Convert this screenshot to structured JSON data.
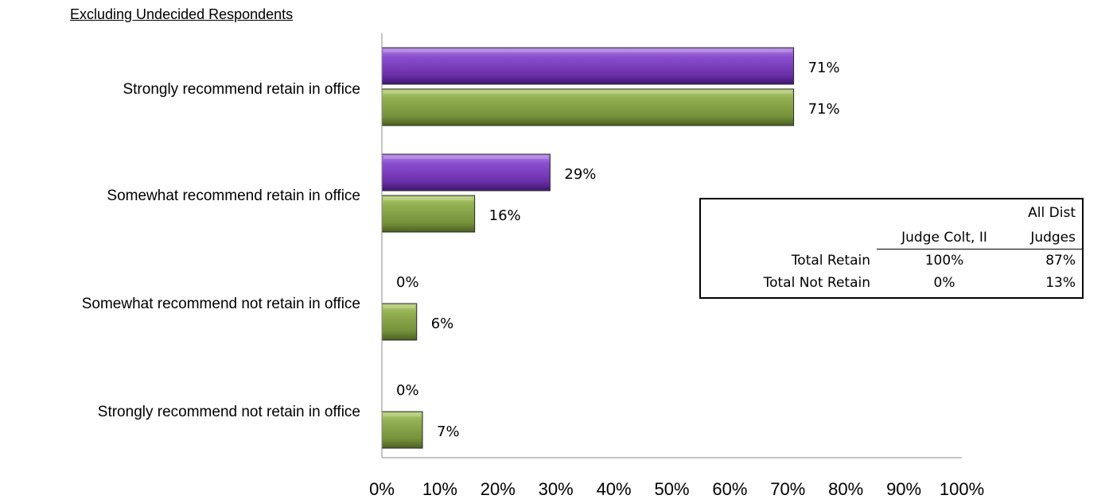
{
  "chart_data": {
    "type": "bar",
    "orientation": "horizontal",
    "subtitle": "Excluding Undecided Respondents",
    "categories": [
      "Strongly recommend retain in office",
      "Somewhat recommend retain in office",
      "Somewhat recommend not retain in office",
      "Strongly recommend not retain in office"
    ],
    "series": [
      {
        "color": "#7b3fb8",
        "values": [
          71,
          29,
          0,
          0
        ]
      },
      {
        "color": "#7f9a3c",
        "values": [
          71,
          16,
          6,
          7
        ]
      }
    ],
    "value_format": "percent",
    "xlim": [
      0,
      100
    ],
    "xticks": [
      "0%",
      "10%",
      "20%",
      "30%",
      "40%",
      "50%",
      "60%",
      "70%",
      "80%",
      "90%",
      "100%"
    ],
    "grid": false,
    "legend": "none"
  },
  "summary_table": {
    "header_top": [
      "",
      "",
      "All Dist"
    ],
    "header_bottom": [
      "",
      "Judge Colt, II",
      "Judges"
    ],
    "rows": [
      [
        "Total Retain",
        "100%",
        "87%"
      ],
      [
        "Total Not Retain",
        "0%",
        "13%"
      ]
    ]
  }
}
